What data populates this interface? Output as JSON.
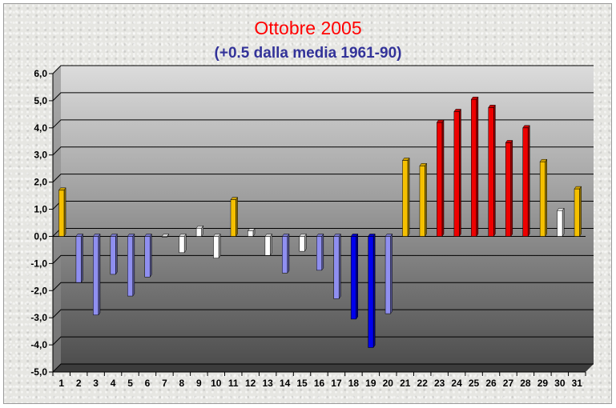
{
  "chart_data": {
    "type": "bar",
    "title": "Ottobre 2005",
    "subtitle": "(+0.5 dalla media 1961-90)",
    "xlabel": "",
    "ylabel": "",
    "ylim": [
      -5,
      6
    ],
    "y_ticks": [
      "6,0",
      "5,0",
      "4,0",
      "3,0",
      "2,0",
      "1,0",
      "0,0",
      "-1,0",
      "-2,0",
      "-3,0",
      "-4,0",
      "-5,0"
    ],
    "categories": [
      "1",
      "2",
      "3",
      "4",
      "5",
      "6",
      "7",
      "8",
      "9",
      "10",
      "11",
      "12",
      "13",
      "14",
      "15",
      "16",
      "17",
      "18",
      "19",
      "20",
      "21",
      "22",
      "23",
      "24",
      "25",
      "26",
      "27",
      "28",
      "29",
      "30",
      "31"
    ],
    "values": [
      1.7,
      -1.7,
      -2.9,
      -1.4,
      -2.2,
      -1.5,
      0.0,
      -0.6,
      0.3,
      -0.8,
      1.35,
      0.2,
      -0.7,
      -1.35,
      -0.55,
      -1.25,
      -2.3,
      -3.05,
      -4.1,
      -2.85,
      2.8,
      2.6,
      4.2,
      4.6,
      5.05,
      4.75,
      3.45,
      4.0,
      2.75,
      0.95,
      1.75
    ],
    "bar_colors": [
      "#f5c000",
      "#8f8ff0",
      "#8f8ff0",
      "#8f8ff0",
      "#8f8ff0",
      "#8f8ff0",
      "#ffffff",
      "#ffffff",
      "#ffffff",
      "#ffffff",
      "#f5c000",
      "#ffffff",
      "#ffffff",
      "#8f8ff0",
      "#ffffff",
      "#8f8ff0",
      "#8f8ff0",
      "#0000ee",
      "#0000ee",
      "#8f8ff0",
      "#f5c000",
      "#f5c000",
      "#ee0000",
      "#ee0000",
      "#ee0000",
      "#ee0000",
      "#ee0000",
      "#ee0000",
      "#f5c000",
      "#ffffff",
      "#f5c000"
    ],
    "grid": true,
    "legend": "none"
  }
}
